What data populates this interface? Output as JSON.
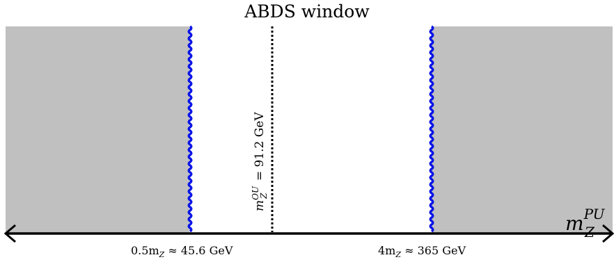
{
  "title": "ABDS window",
  "axis_label": {
    "base": "m",
    "sub": "Z",
    "sup": "PU"
  },
  "left_tick": {
    "label": "0.5m",
    "sub": "Z",
    "rest": " ≈ 45.6 GeV"
  },
  "right_tick": {
    "label": "4m",
    "sub": "Z",
    "rest": " ≈ 365 GeV"
  },
  "center_line_label": {
    "base": "m",
    "sup": "OU",
    "sub": "Z",
    "rest": " = 91.2 GeV"
  },
  "colors": {
    "excluded_region": "#c0c0c0",
    "window_boundary": "#0a14e6",
    "axis": "#000000",
    "background": "#ffffff"
  }
}
